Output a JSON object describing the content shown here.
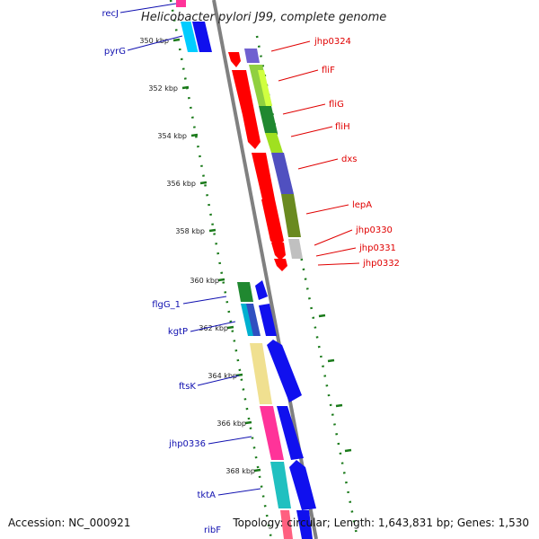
{
  "title": "Helicobacter pylori J99, complete genome",
  "accession": "Accession: NC_000921",
  "topology": "Topology: circular; Length: 1,643,831 bp; Genes: 1,530",
  "colors": {
    "backbone": "#808080",
    "tick": "#1a7a1a",
    "label_red": "#e00000",
    "label_blue": "#1010b0"
  },
  "kbp_labels": [
    "350 kbp",
    "352 kbp",
    "354 kbp",
    "356 kbp",
    "358 kbp",
    "360 kbp",
    "362 kbp",
    "364 kbp",
    "366 kbp",
    "368 kbp"
  ],
  "genes_right": [
    "jhp0324",
    "fliF",
    "fliG",
    "fliH",
    "dxs",
    "lepA",
    "jhp0330",
    "jhp0331",
    "jhp0332"
  ],
  "genes_left": [
    "recJ",
    "pyrG",
    "flgG_1",
    "kgtP",
    "ftsK",
    "jhp0336",
    "tktA",
    "ribF"
  ]
}
